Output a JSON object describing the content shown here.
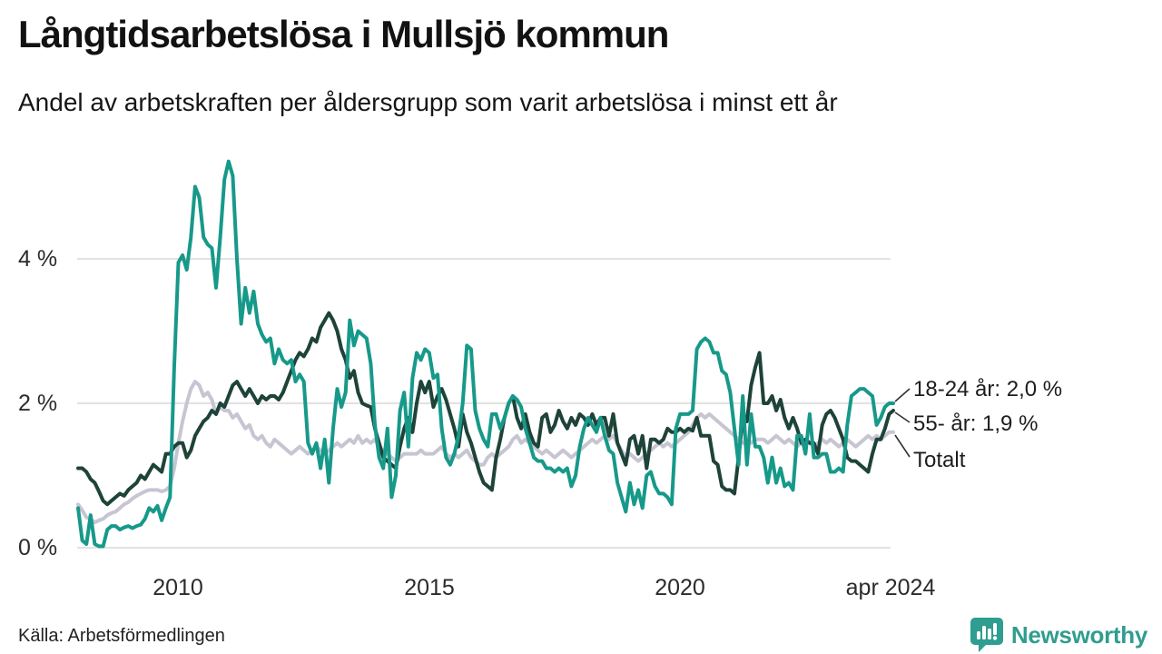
{
  "header": {
    "title": "Långtidsarbetslösa i Mullsjö kommun",
    "subtitle": "Andel av arbetskraften per åldersgrupp som varit arbetslösa i minst ett år"
  },
  "footer": {
    "source": "Källa: Arbetsförmedlingen",
    "brand": "Newsworthy"
  },
  "colors": {
    "series_18_24": "#17998A",
    "series_55": "#1E4339",
    "series_total": "#C7C5D2",
    "gridline": "#E2E2E2",
    "brand_teal": "#2F9D8F"
  },
  "chart_data": {
    "type": "line",
    "title": "Långtidsarbetslösa i Mullsjö kommun",
    "subtitle": "Andel av arbetskraften per åldersgrupp som varit arbetslösa i minst ett år",
    "x_start": "2008-01",
    "x_end": "2024-04",
    "x_interval": "monthly",
    "x_tick_labels": [
      "2010",
      "2015",
      "2020",
      "apr 2024"
    ],
    "x_tick_month_index": [
      24,
      84,
      144,
      195
    ],
    "y_tick_labels": [
      "0 %",
      "2 %",
      "4 %"
    ],
    "y_ticks": [
      0,
      2,
      4
    ],
    "ylim": [
      0,
      5.5
    ],
    "grid": "horizontal",
    "legend_position": "right-end-labels",
    "series": [
      {
        "name": "18-24 år",
        "end_label": "18-24 år: 2,0 %",
        "last_value": 2.0,
        "color": "#17998A",
        "values": [
          0.55,
          0.1,
          0.05,
          0.45,
          0.05,
          0.02,
          0.02,
          0.25,
          0.3,
          0.3,
          0.25,
          0.28,
          0.3,
          0.27,
          0.3,
          0.32,
          0.4,
          0.55,
          0.5,
          0.58,
          0.38,
          0.55,
          0.7,
          2.5,
          3.95,
          4.05,
          3.85,
          4.3,
          5.0,
          4.85,
          4.3,
          4.2,
          4.15,
          3.6,
          4.3,
          5.1,
          5.35,
          5.15,
          4.0,
          3.1,
          3.6,
          3.25,
          3.55,
          3.1,
          2.95,
          2.85,
          2.9,
          2.55,
          2.75,
          2.6,
          2.55,
          2.6,
          2.3,
          2.4,
          2.3,
          1.45,
          1.3,
          1.45,
          1.1,
          1.5,
          0.9,
          1.65,
          2.2,
          1.95,
          2.15,
          3.15,
          2.8,
          3.0,
          2.95,
          2.9,
          2.55,
          1.7,
          1.25,
          1.1,
          1.65,
          0.7,
          1.0,
          1.9,
          2.15,
          1.4,
          2.35,
          2.7,
          2.6,
          2.75,
          2.7,
          2.35,
          2.4,
          1.65,
          1.25,
          1.15,
          1.3,
          1.55,
          2.0,
          2.8,
          2.75,
          1.9,
          1.65,
          1.5,
          1.4,
          1.85,
          1.85,
          1.65,
          1.8,
          2.0,
          2.1,
          2.05,
          1.95,
          1.65,
          1.45,
          1.25,
          1.2,
          1.2,
          1.1,
          1.1,
          1.05,
          1.1,
          1.05,
          1.1,
          0.85,
          1.0,
          1.4,
          1.65,
          1.8,
          1.7,
          1.6,
          1.8,
          1.55,
          1.35,
          1.3,
          0.9,
          0.7,
          0.5,
          0.9,
          0.6,
          0.8,
          0.55,
          1.0,
          1.05,
          0.85,
          0.75,
          0.75,
          0.7,
          0.6,
          1.65,
          1.85,
          1.85,
          1.85,
          1.9,
          2.75,
          2.85,
          2.9,
          2.85,
          2.7,
          2.7,
          2.45,
          2.4,
          2.15,
          1.65,
          1.15,
          2.1,
          1.15,
          1.85,
          1.4,
          1.4,
          1.25,
          0.9,
          1.25,
          0.9,
          1.1,
          0.85,
          0.9,
          0.8,
          1.55,
          1.55,
          1.3,
          1.85,
          1.25,
          1.25,
          1.3,
          1.3,
          1.05,
          1.05,
          1.1,
          1.05,
          1.7,
          2.1,
          2.15,
          2.2,
          2.2,
          2.15,
          2.1,
          1.7,
          1.8,
          1.95,
          2.0,
          2.0
        ]
      },
      {
        "name": "55- år",
        "end_label": "55- år: 1,9 %",
        "last_value": 1.9,
        "color": "#1E4339",
        "values": [
          1.1,
          1.1,
          1.05,
          0.95,
          0.9,
          0.78,
          0.65,
          0.6,
          0.65,
          0.7,
          0.75,
          0.72,
          0.8,
          0.85,
          0.9,
          1.0,
          0.95,
          1.05,
          1.15,
          1.1,
          1.05,
          1.3,
          1.3,
          1.4,
          1.45,
          1.45,
          1.25,
          1.35,
          1.55,
          1.65,
          1.75,
          1.8,
          1.9,
          1.85,
          2.0,
          1.95,
          2.1,
          2.25,
          2.3,
          2.2,
          2.1,
          2.2,
          2.1,
          2.0,
          2.1,
          2.05,
          2.1,
          2.1,
          2.05,
          2.15,
          2.3,
          2.45,
          2.6,
          2.7,
          2.65,
          2.75,
          2.9,
          2.85,
          3.05,
          3.15,
          3.25,
          3.15,
          3.0,
          2.75,
          2.6,
          2.35,
          2.45,
          2.15,
          2.0,
          1.97,
          1.95,
          1.65,
          1.45,
          1.25,
          1.2,
          1.15,
          1.1,
          1.4,
          1.65,
          1.8,
          1.6,
          2.0,
          2.3,
          2.15,
          2.3,
          1.95,
          2.1,
          2.2,
          2.05,
          1.85,
          1.65,
          1.4,
          1.85,
          1.6,
          1.45,
          1.25,
          1.05,
          0.9,
          0.85,
          0.8,
          1.25,
          1.5,
          1.8,
          2.0,
          2.1,
          1.8,
          1.65,
          1.85,
          1.6,
          1.45,
          1.4,
          1.8,
          1.85,
          1.6,
          1.7,
          1.9,
          1.75,
          1.65,
          1.8,
          1.7,
          1.85,
          1.8,
          1.7,
          1.85,
          1.7,
          1.8,
          1.8,
          1.55,
          1.85,
          1.45,
          1.3,
          1.15,
          1.5,
          1.55,
          1.3,
          1.55,
          1.1,
          1.5,
          1.5,
          1.45,
          1.5,
          1.65,
          1.6,
          1.6,
          1.65,
          1.6,
          1.65,
          1.62,
          1.8,
          1.55,
          1.55,
          1.55,
          1.2,
          1.15,
          0.85,
          0.8,
          0.8,
          0.75,
          1.25,
          1.8,
          1.75,
          2.25,
          2.5,
          2.7,
          2.0,
          2.0,
          2.1,
          1.9,
          2.05,
          1.8,
          1.65,
          1.8,
          1.65,
          1.45,
          1.5,
          1.45,
          1.45,
          1.3,
          1.7,
          1.85,
          1.9,
          1.8,
          1.65,
          1.5,
          1.25,
          1.2,
          1.2,
          1.15,
          1.1,
          1.05,
          1.3,
          1.5,
          1.5,
          1.65,
          1.85,
          1.9
        ]
      },
      {
        "name": "Totalt",
        "end_label": "Totalt",
        "last_value": null,
        "color": "#C7C5D2",
        "values": [
          0.6,
          0.52,
          0.42,
          0.4,
          0.35,
          0.38,
          0.4,
          0.45,
          0.48,
          0.5,
          0.55,
          0.6,
          0.63,
          0.68,
          0.72,
          0.75,
          0.78,
          0.8,
          0.8,
          0.8,
          0.78,
          0.8,
          0.85,
          1.1,
          1.45,
          1.75,
          2.0,
          2.2,
          2.3,
          2.25,
          2.1,
          2.15,
          2.05,
          1.85,
          1.95,
          1.9,
          1.9,
          1.8,
          1.85,
          1.75,
          1.65,
          1.7,
          1.55,
          1.5,
          1.55,
          1.45,
          1.4,
          1.5,
          1.45,
          1.4,
          1.35,
          1.3,
          1.35,
          1.4,
          1.35,
          1.3,
          1.35,
          1.4,
          1.35,
          1.3,
          1.35,
          1.4,
          1.45,
          1.4,
          1.45,
          1.5,
          1.45,
          1.55,
          1.45,
          1.5,
          1.45,
          1.5,
          1.4,
          1.35,
          1.3,
          1.25,
          1.2,
          1.25,
          1.3,
          1.3,
          1.3,
          1.3,
          1.35,
          1.3,
          1.3,
          1.3,
          1.35,
          1.4,
          1.3,
          1.25,
          1.3,
          1.25,
          1.3,
          1.35,
          1.25,
          1.2,
          1.15,
          1.15,
          1.25,
          1.3,
          1.25,
          1.3,
          1.35,
          1.4,
          1.5,
          1.55,
          1.45,
          1.5,
          1.45,
          1.4,
          1.35,
          1.3,
          1.35,
          1.3,
          1.25,
          1.3,
          1.35,
          1.3,
          1.25,
          1.3,
          1.35,
          1.4,
          1.45,
          1.5,
          1.45,
          1.5,
          1.55,
          1.5,
          1.55,
          1.45,
          1.35,
          1.25,
          1.3,
          1.25,
          1.2,
          1.25,
          1.3,
          1.35,
          1.4,
          1.45,
          1.4,
          1.45,
          1.4,
          1.45,
          1.5,
          1.55,
          1.6,
          1.7,
          1.8,
          1.85,
          1.8,
          1.85,
          1.8,
          1.75,
          1.7,
          1.65,
          1.6,
          1.55,
          1.5,
          1.45,
          1.45,
          1.45,
          1.5,
          1.5,
          1.5,
          1.45,
          1.5,
          1.55,
          1.5,
          1.45,
          1.5,
          1.45,
          1.4,
          1.45,
          1.5,
          1.45,
          1.4,
          1.45,
          1.5,
          1.45,
          1.5,
          1.45,
          1.4,
          1.45,
          1.5,
          1.45,
          1.4,
          1.45,
          1.5,
          1.55,
          1.5,
          1.55,
          1.5,
          1.55,
          1.6,
          1.6
        ]
      }
    ]
  }
}
